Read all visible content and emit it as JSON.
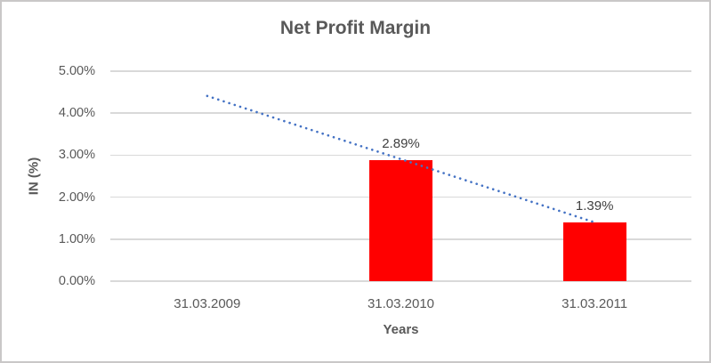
{
  "chart_data": {
    "type": "bar",
    "title": "Net Profit Margin",
    "categories": [
      "31.03.2009",
      "31.03.2010",
      "31.03.2011"
    ],
    "series": [
      {
        "name": "Net Profit Margin",
        "values": [
          null,
          2.89,
          1.39
        ],
        "data_labels": [
          "",
          "2.89%",
          "1.39%"
        ],
        "color": "#FF0000"
      }
    ],
    "value_unit": "percent",
    "xlabel": "Years",
    "ylabel": "IN (%)",
    "ylim": [
      0,
      5
    ],
    "yticks": [
      {
        "value": 0,
        "label": "0.00%"
      },
      {
        "value": 1,
        "label": "1.00%"
      },
      {
        "value": 2,
        "label": "2.00%"
      },
      {
        "value": 3,
        "label": "3.00%"
      },
      {
        "value": 4,
        "label": "4.00%"
      },
      {
        "value": 5,
        "label": "5.00%"
      }
    ],
    "grid": true,
    "legend": false,
    "trendline": {
      "style": "dotted",
      "color": "#4472C4",
      "points": [
        {
          "category_index": 0,
          "value": 4.41
        },
        {
          "category_index": 2,
          "value": 1.4
        }
      ]
    },
    "colors": {
      "title_text": "#595959",
      "axis_text": "#595959",
      "data_label_text": "#404040",
      "gridline": "#D9D9D9",
      "bar": "#FF0000",
      "trendline": "#4472C4",
      "background": "#FFFFFF",
      "frame_border": "#C9C7C7"
    }
  }
}
